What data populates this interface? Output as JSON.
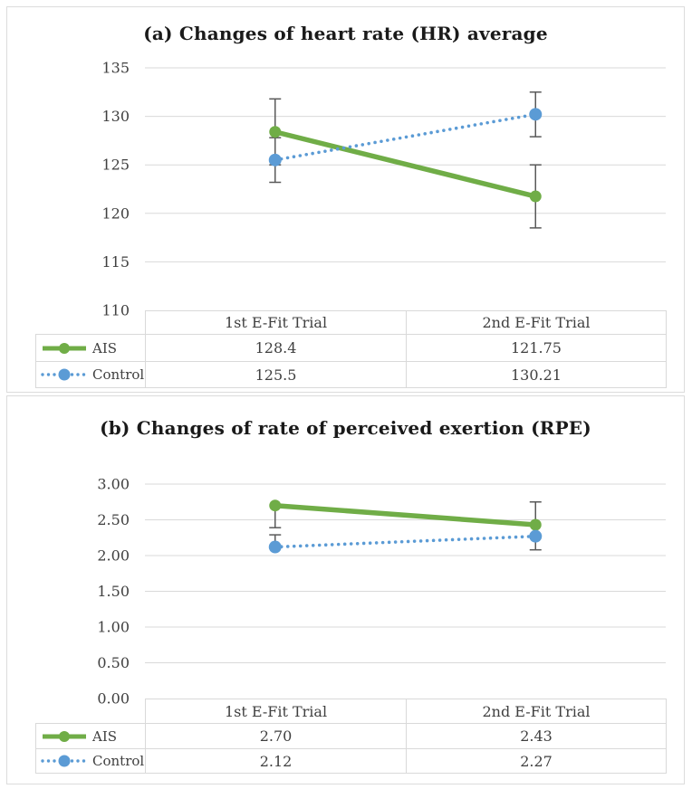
{
  "colors": {
    "ais": "#70AD47",
    "control": "#5B9BD5",
    "error_bar": "#595959",
    "gridline": "#D9D9D9",
    "axis_text": "#404040",
    "title_text": "#1A1A1A",
    "table_border": "#D9D9D9",
    "panel_border": "#DCDCDC"
  },
  "chart_data": [
    {
      "type": "line",
      "title": "(a) Changes of heart rate (HR) average",
      "categories": [
        "1st E-Fit Trial",
        "2nd E-Fit Trial"
      ],
      "xlabel": "",
      "ylabel": "",
      "ylim": [
        110,
        135
      ],
      "grid": true,
      "legend_position": "table-left",
      "y_axis": {
        "min": 110,
        "max": 135,
        "step": 5,
        "tick_labels": [
          "135",
          "130",
          "125",
          "120",
          "115",
          "110"
        ]
      },
      "series": [
        {
          "name": "AIS",
          "color_key": "ais",
          "line_style": "solid",
          "values": [
            128.4,
            121.75
          ],
          "display_values": [
            "128.4",
            "121.75"
          ],
          "error_bars": [
            {
              "low": 125.0,
              "high": 131.8,
              "cap_low": true,
              "cap_high": true
            },
            {
              "low": 118.5,
              "high": 125.0,
              "cap_low": true,
              "cap_high": true
            }
          ]
        },
        {
          "name": "Control",
          "color_key": "control",
          "line_style": "dotted",
          "values": [
            125.5,
            130.21
          ],
          "display_values": [
            "125.5",
            "130.21"
          ],
          "error_bars": [
            {
              "low": 123.2,
              "high": 127.8,
              "cap_low": true,
              "cap_high": true
            },
            {
              "low": 127.9,
              "high": 132.5,
              "cap_low": true,
              "cap_high": true
            }
          ]
        }
      ]
    },
    {
      "type": "line",
      "title": "(b) Changes of rate of perceived exertion (RPE)",
      "categories": [
        "1st E-Fit Trial",
        "2nd E-Fit Trial"
      ],
      "xlabel": "",
      "ylabel": "",
      "ylim": [
        0,
        3
      ],
      "grid": true,
      "legend_position": "table-left",
      "y_axis": {
        "min": 0,
        "max": 3,
        "step": 0.5,
        "tick_labels": [
          "3.00",
          "2.50",
          "2.00",
          "1.50",
          "1.00",
          "0.50",
          "0.00"
        ]
      },
      "series": [
        {
          "name": "AIS",
          "color_key": "ais",
          "line_style": "solid",
          "values": [
            2.7,
            2.43
          ],
          "display_values": [
            "2.70",
            "2.43"
          ],
          "error_bars": [
            {
              "low": 2.39,
              "high": 2.7,
              "cap_low": true,
              "cap_high": false
            },
            {
              "low": 2.43,
              "high": 2.75,
              "cap_low": false,
              "cap_high": true
            }
          ]
        },
        {
          "name": "Control",
          "color_key": "control",
          "line_style": "dotted",
          "values": [
            2.12,
            2.27
          ],
          "display_values": [
            "2.12",
            "2.27"
          ],
          "error_bars": [
            {
              "low": 2.12,
              "high": 2.29,
              "cap_low": false,
              "cap_high": true
            },
            {
              "low": 2.08,
              "high": 2.27,
              "cap_low": true,
              "cap_high": false
            }
          ]
        }
      ]
    }
  ]
}
